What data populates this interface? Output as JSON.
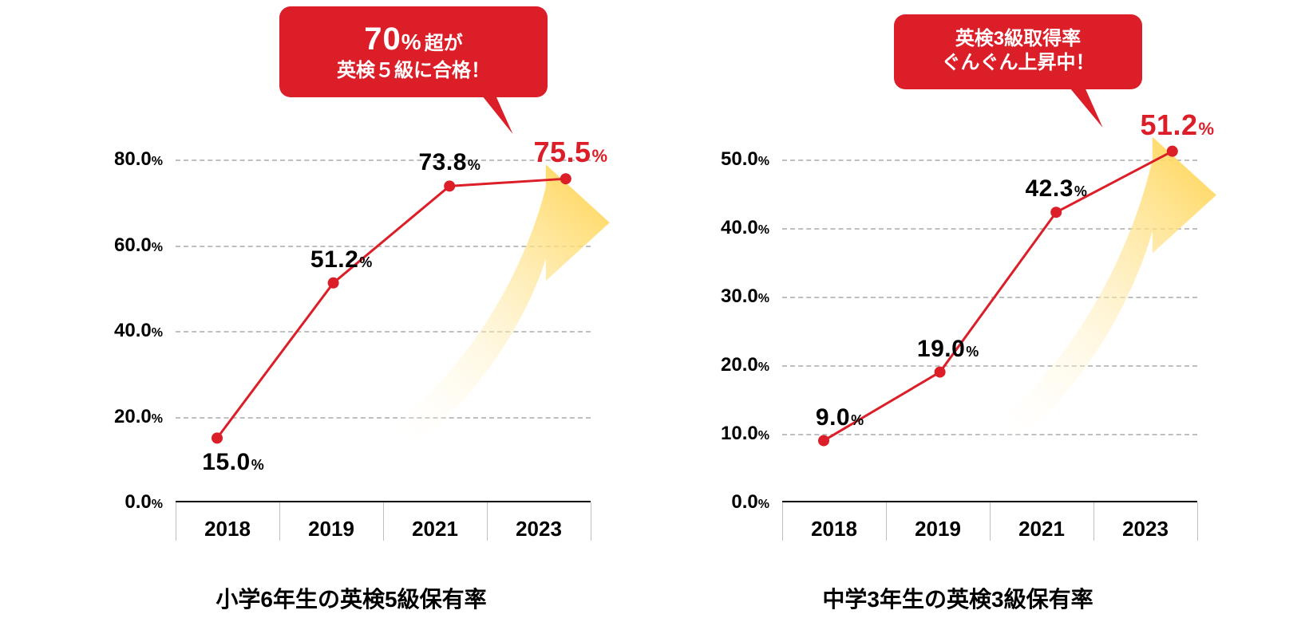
{
  "background_color": "#ffffff",
  "line_color": "#dc1e28",
  "marker_fill": "#dc1e28",
  "grid_color": "#bfbfbf",
  "axis_color": "#000000",
  "label_color": "#000000",
  "highlight_color": "#dc1e28",
  "axis_fontsize_num": 24,
  "axis_fontsize_pct": 16,
  "xtick_fontsize": 26,
  "point_label_fontsize_num": 30,
  "point_label_fontsize_pct": 18,
  "point_label_highlight_fontsize_num": 36,
  "point_label_highlight_fontsize_pct": 22,
  "title_fontsize": 28,
  "line_width": 3,
  "marker_radius": 7,
  "grid_dash": "6 6",
  "arrow": {
    "fill_start": "#ffd24a",
    "fill_end": "#ffffff",
    "opacity": 1.0
  },
  "charts": [
    {
      "id": "left",
      "title": "小学6年生の英検5級保有率",
      "ymin": 0,
      "ymax": 80,
      "ytick_step": 20,
      "ytick_labels": [
        "0.0",
        "20.0",
        "40.0",
        "60.0",
        "80.0"
      ],
      "categories": [
        "2018",
        "2019",
        "2021",
        "2023"
      ],
      "values": [
        15.0,
        51.2,
        73.8,
        75.5
      ],
      "value_labels": [
        "15.0",
        "51.2",
        "73.8",
        "75.5"
      ],
      "highlight_index": 3,
      "label_side": [
        "below",
        "above",
        "above",
        "above"
      ],
      "callout": {
        "line1_big": "70",
        "line1_big_suffix": "%",
        "line1_tail": "超が",
        "line2": "英検５級に合格！",
        "style": "big-first"
      }
    },
    {
      "id": "right",
      "title": "中学3年生の英検3級保有率",
      "ymin": 0,
      "ymax": 50,
      "ytick_step": 10,
      "ytick_labels": [
        "0.0",
        "10.0",
        "20.0",
        "30.0",
        "40.0",
        "50.0"
      ],
      "categories": [
        "2018",
        "2019",
        "2021",
        "2023"
      ],
      "values": [
        9.0,
        19.0,
        42.3,
        51.2
      ],
      "value_labels": [
        "9.0",
        "19.0",
        "42.3",
        "51.2"
      ],
      "highlight_index": 3,
      "label_side": [
        "above",
        "above",
        "above",
        "above"
      ],
      "callout": {
        "line1": "英検3級取得率",
        "line2": "ぐんぐん上昇中！",
        "style": "uniform"
      }
    }
  ]
}
